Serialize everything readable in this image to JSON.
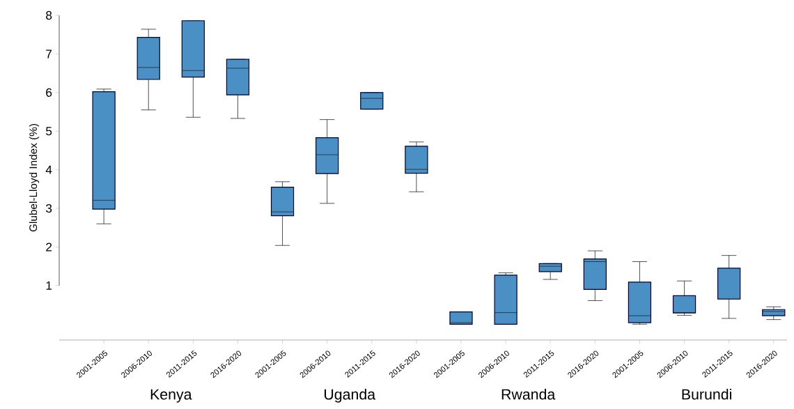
{
  "chart_data": {
    "type": "box",
    "ylabel": "Glubel-Lloyd Index (%)",
    "categories": [
      "2001-2005",
      "2006-2010",
      "2011-2015",
      "2016-2020",
      "2001-2005",
      "2006-2010",
      "2011-2015",
      "2016-2020",
      "2001-2005",
      "2006-2010",
      "2011-2015",
      "2016-2020",
      "2001-2005",
      "2006-2010",
      "2011-2015",
      "2016-2020"
    ],
    "boxes": [
      {
        "low": 2.6,
        "q1": 2.98,
        "median": 3.21,
        "q3": 6.02,
        "high": 6.09
      },
      {
        "low": 5.55,
        "q1": 6.34,
        "median": 6.65,
        "q3": 7.43,
        "high": 7.64
      },
      {
        "low": 5.36,
        "q1": 6.4,
        "median": 6.57,
        "q3": 7.86,
        "high": 7.86
      },
      {
        "low": 5.33,
        "q1": 5.94,
        "median": 6.63,
        "q3": 6.86,
        "high": 6.86
      },
      {
        "low": 2.04,
        "q1": 2.81,
        "median": 2.91,
        "q3": 3.55,
        "high": 3.69
      },
      {
        "low": 3.13,
        "q1": 3.9,
        "median": 4.39,
        "q3": 4.83,
        "high": 5.3
      },
      {
        "low": 5.57,
        "q1": 5.57,
        "median": 5.85,
        "q3": 6.0,
        "high": 6.0
      },
      {
        "low": 3.43,
        "q1": 3.91,
        "median": 4.01,
        "q3": 4.61,
        "high": 4.72
      },
      {
        "low": 0.0,
        "q1": 0.0,
        "median": 0.04,
        "q3": 0.32,
        "high": 0.32
      },
      {
        "low": 0.0,
        "q1": 0.0,
        "median": 0.3,
        "q3": 1.27,
        "high": 1.33
      },
      {
        "low": 1.16,
        "q1": 1.36,
        "median": 1.5,
        "q3": 1.57,
        "high": 1.57
      },
      {
        "low": 0.61,
        "q1": 0.9,
        "median": 1.62,
        "q3": 1.69,
        "high": 1.9
      },
      {
        "low": 0.0,
        "q1": 0.04,
        "median": 0.22,
        "q3": 1.09,
        "high": 1.62
      },
      {
        "low": 0.23,
        "q1": 0.29,
        "median": 0.3,
        "q3": 0.74,
        "high": 1.12
      },
      {
        "low": 0.15,
        "q1": 0.65,
        "median": 0.65,
        "q3": 1.45,
        "high": 1.78
      },
      {
        "low": 0.12,
        "q1": 0.22,
        "median": 0.33,
        "q3": 0.38,
        "high": 0.45
      }
    ],
    "color": "#4a90c4",
    "ylim": [
      -0.41,
      8
    ],
    "yticks": [
      1,
      2,
      3,
      4,
      5,
      6,
      7,
      8
    ],
    "annotations": [
      "Kenya",
      "Uganda",
      "Rwanda",
      "Burundi"
    ]
  }
}
